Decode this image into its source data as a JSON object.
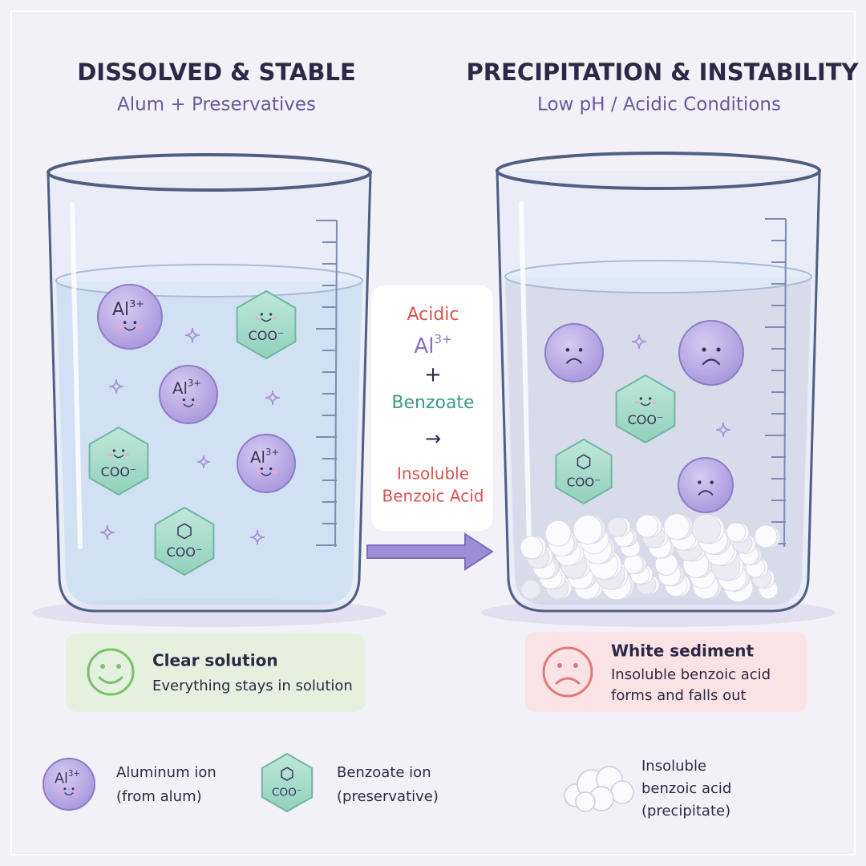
{
  "ion_labels": {
    "aluminum": "Al",
    "charge": "3+",
    "benzoate": "COO⁻"
  },
  "left_panel": {
    "title": "DISSOLVED & STABLE",
    "subtitle": "Alum + Preservatives",
    "status": {
      "title": "Clear solution",
      "lines": [
        "Everything stays in solution"
      ]
    }
  },
  "right_panel": {
    "title": "PRECIPITATION & INSTABILITY",
    "subtitle": "Low pH / Acidic Conditions",
    "status": {
      "title": "White sediment",
      "lines": [
        "Insoluble benzoic acid",
        "forms and falls out"
      ]
    }
  },
  "reaction": {
    "condition": "Acidic",
    "plus": "+",
    "reactant": "Benzoate",
    "arrow": "→",
    "product": [
      "Insoluble",
      "Benzoic Acid"
    ]
  },
  "legend": [
    {
      "lines": [
        "Aluminum ion",
        "(from alum)"
      ]
    },
    {
      "lines": [
        "Benzoate ion",
        "(preservative)"
      ]
    },
    {
      "lines": [
        "Insoluble",
        "benzoic acid",
        "(precipitate)"
      ]
    }
  ]
}
